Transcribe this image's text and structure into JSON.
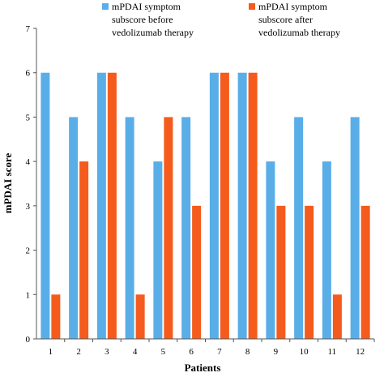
{
  "chart_data": {
    "type": "bar",
    "title": "",
    "xlabel": "Patients",
    "ylabel": "mPDAI score",
    "ylim": [
      0,
      7
    ],
    "yticks": [
      0,
      1,
      2,
      3,
      4,
      5,
      6,
      7
    ],
    "grid": false,
    "legend_position": "top",
    "categories": [
      "1",
      "2",
      "3",
      "4",
      "5",
      "6",
      "7",
      "8",
      "9",
      "10",
      "11",
      "12"
    ],
    "series": [
      {
        "name_lines": [
          "mPDAI symptom",
          "subscore before",
          "vedolizumab therapy"
        ],
        "color": "#5aaee8",
        "values": [
          6,
          5,
          6,
          5,
          4,
          5,
          6,
          6,
          4,
          5,
          4,
          5
        ]
      },
      {
        "name_lines": [
          "mPDAI symptom",
          "subscore after",
          "vedolizumab therapy"
        ],
        "color": "#f45b1c",
        "values": [
          1,
          4,
          6,
          1,
          5,
          3,
          6,
          6,
          3,
          3,
          1,
          3
        ]
      }
    ]
  }
}
